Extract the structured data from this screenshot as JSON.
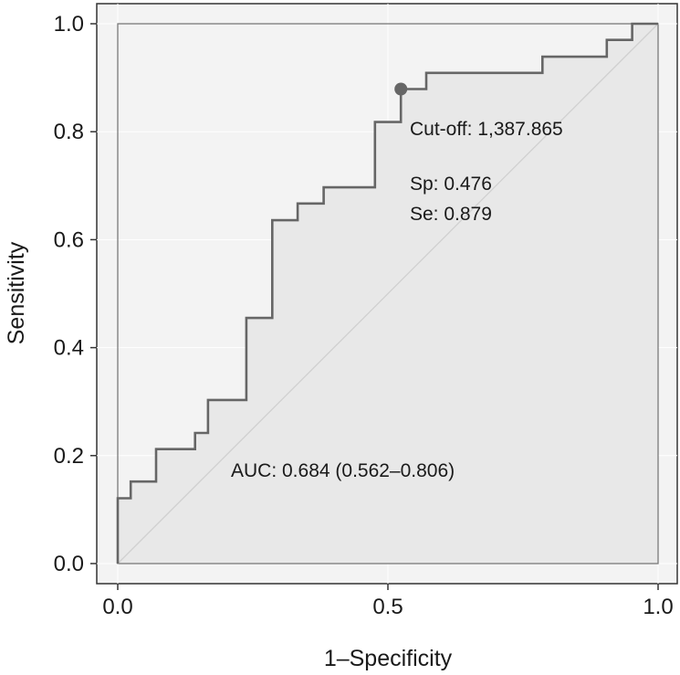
{
  "chart_data": {
    "type": "line",
    "subtype": "roc_curve",
    "xlabel": "1–Specificity",
    "ylabel": "Sensitivity",
    "xlim": [
      0,
      1
    ],
    "ylim": [
      0,
      1
    ],
    "x_ticks": [
      {
        "value": 0,
        "label": "0.0"
      },
      {
        "value": 0.5,
        "label": "0.5"
      },
      {
        "value": 1,
        "label": "1.0"
      }
    ],
    "y_ticks": [
      {
        "value": 0,
        "label": "0.0"
      },
      {
        "value": 0.2,
        "label": "0.2"
      },
      {
        "value": 0.4,
        "label": "0.4"
      },
      {
        "value": 0.6,
        "label": "0.6"
      },
      {
        "value": 0.8,
        "label": "0.8"
      },
      {
        "value": 1,
        "label": "1.0"
      }
    ],
    "grid": true,
    "series": [
      {
        "name": "ROC",
        "x": [
          0,
          0,
          0.024,
          0.024,
          0.071,
          0.071,
          0.143,
          0.143,
          0.167,
          0.167,
          0.238,
          0.238,
          0.286,
          0.286,
          0.333,
          0.333,
          0.381,
          0.381,
          0.476,
          0.476,
          0.524,
          0.524,
          0.571,
          0.571,
          0.786,
          0.786,
          0.905,
          0.905,
          0.952,
          0.952,
          1.0
        ],
        "y": [
          0,
          0.121,
          0.121,
          0.152,
          0.152,
          0.212,
          0.212,
          0.242,
          0.242,
          0.303,
          0.303,
          0.455,
          0.455,
          0.636,
          0.636,
          0.667,
          0.667,
          0.697,
          0.697,
          0.818,
          0.818,
          0.879,
          0.879,
          0.909,
          0.909,
          0.939,
          0.939,
          0.97,
          0.97,
          1.0,
          1.0
        ]
      }
    ],
    "reference_line": {
      "x": [
        0,
        1
      ],
      "y": [
        0,
        1
      ]
    },
    "cutoff_point": {
      "x": 0.524,
      "y": 0.879
    },
    "annotations": {
      "cutoff": "Cut-off: 1,387.865",
      "sp": "Sp: 0.476",
      "se": "Se: 0.879",
      "auc": "AUC: 0.684 (0.562–0.806)"
    },
    "colors": {
      "curve": "#666666",
      "point": "#666666",
      "fill_under": "#e8e8e8",
      "plot_background": "#f3f3f3",
      "grid": "#ffffff",
      "reference": "#d0d0d0",
      "frame": "#333333"
    }
  }
}
